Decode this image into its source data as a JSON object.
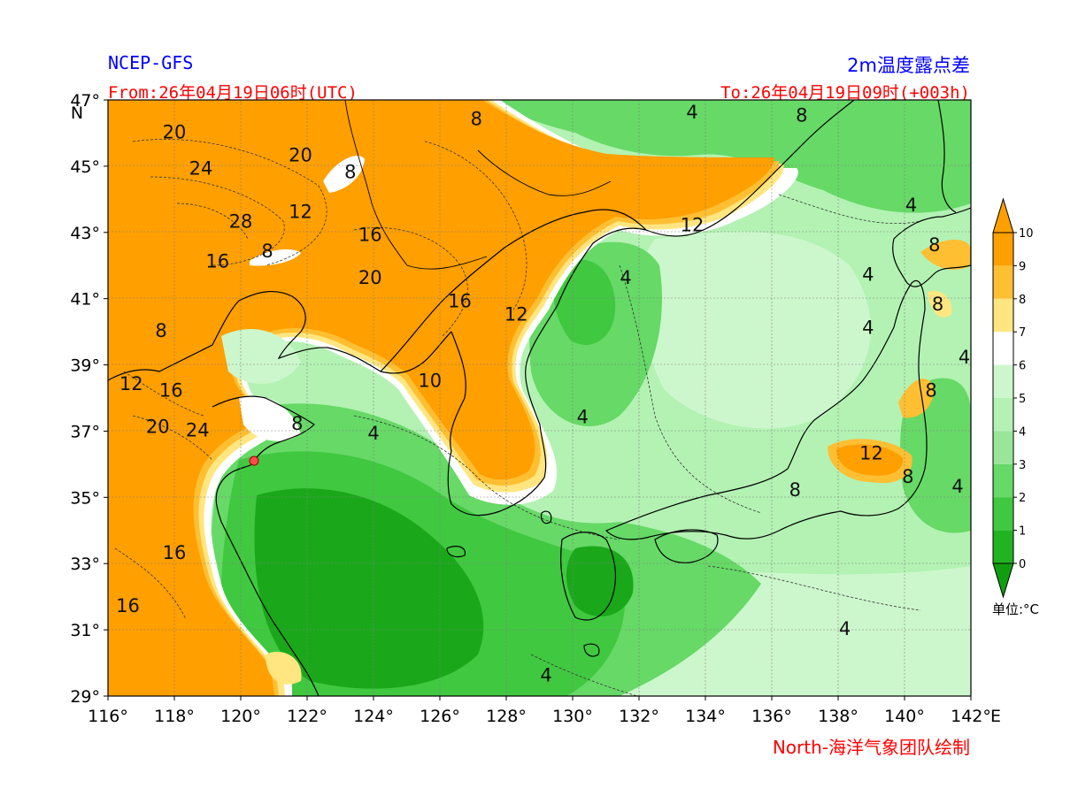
{
  "header": {
    "model": "NCEP-GFS",
    "product": "2m温度露点差",
    "from_time": "From:26年04月19日06时(UTC)",
    "to_time": "To:26年04月19日09时(+003h)"
  },
  "footer": {
    "credit": "North-海洋气象团队绘制"
  },
  "map": {
    "lon_range": [
      116,
      142
    ],
    "lat_range": [
      29,
      47
    ],
    "lon_ticks": [
      "116°",
      "118°",
      "120°",
      "122°",
      "124°",
      "126°",
      "128°",
      "130°",
      "132°",
      "134°",
      "136°",
      "138°",
      "140°",
      "142°"
    ],
    "lon_end_label": "E",
    "lat_ticks": [
      "29°",
      "31°",
      "33°",
      "35°",
      "37°",
      "39°",
      "41°",
      "43°",
      "45°",
      "47°"
    ],
    "lat_top_label": "N",
    "contour_labels": [
      {
        "text": "20",
        "lon": 118.0,
        "lat": 46.0
      },
      {
        "text": "24",
        "lon": 118.8,
        "lat": 44.9
      },
      {
        "text": "20",
        "lon": 121.8,
        "lat": 45.3
      },
      {
        "text": "8",
        "lon": 123.3,
        "lat": 44.8
      },
      {
        "text": "12",
        "lon": 121.8,
        "lat": 43.6
      },
      {
        "text": "28",
        "lon": 120.0,
        "lat": 43.3
      },
      {
        "text": "16",
        "lon": 123.9,
        "lat": 42.9
      },
      {
        "text": "8",
        "lon": 120.8,
        "lat": 42.4
      },
      {
        "text": "16",
        "lon": 119.3,
        "lat": 42.1
      },
      {
        "text": "20",
        "lon": 123.9,
        "lat": 41.6
      },
      {
        "text": "16",
        "lon": 126.6,
        "lat": 40.9
      },
      {
        "text": "12",
        "lon": 128.3,
        "lat": 40.5
      },
      {
        "text": "8",
        "lon": 117.6,
        "lat": 40.0
      },
      {
        "text": "12",
        "lon": 116.7,
        "lat": 38.4
      },
      {
        "text": "16",
        "lon": 117.9,
        "lat": 38.2
      },
      {
        "text": "10",
        "lon": 125.7,
        "lat": 38.5
      },
      {
        "text": "20",
        "lon": 117.5,
        "lat": 37.1
      },
      {
        "text": "24",
        "lon": 118.7,
        "lat": 37.0
      },
      {
        "text": "8",
        "lon": 121.7,
        "lat": 37.2
      },
      {
        "text": "4",
        "lon": 124.0,
        "lat": 36.9
      },
      {
        "text": "4",
        "lon": 130.3,
        "lat": 37.4
      },
      {
        "text": "8",
        "lon": 127.1,
        "lat": 46.4
      },
      {
        "text": "4",
        "lon": 133.6,
        "lat": 46.6
      },
      {
        "text": "8",
        "lon": 136.9,
        "lat": 46.5
      },
      {
        "text": "4",
        "lon": 140.2,
        "lat": 43.8
      },
      {
        "text": "12",
        "lon": 133.6,
        "lat": 43.2
      },
      {
        "text": "8",
        "lon": 140.9,
        "lat": 42.6
      },
      {
        "text": "4",
        "lon": 131.6,
        "lat": 41.6
      },
      {
        "text": "4",
        "lon": 138.9,
        "lat": 41.7
      },
      {
        "text": "8",
        "lon": 141.0,
        "lat": 40.8
      },
      {
        "text": "4",
        "lon": 138.9,
        "lat": 40.1
      },
      {
        "text": "4",
        "lon": 141.8,
        "lat": 39.2
      },
      {
        "text": "8",
        "lon": 140.8,
        "lat": 38.2
      },
      {
        "text": "12",
        "lon": 139.0,
        "lat": 36.3
      },
      {
        "text": "8",
        "lon": 140.1,
        "lat": 35.6
      },
      {
        "text": "8",
        "lon": 136.7,
        "lat": 35.2
      },
      {
        "text": "4",
        "lon": 141.6,
        "lat": 35.3
      },
      {
        "text": "16",
        "lon": 118.0,
        "lat": 33.3
      },
      {
        "text": "16",
        "lon": 116.6,
        "lat": 31.7
      },
      {
        "text": "4",
        "lon": 138.2,
        "lat": 31.0
      },
      {
        "text": "4",
        "lon": 129.2,
        "lat": 29.6
      }
    ]
  },
  "colorbar": {
    "levels": [
      "10",
      "9",
      "8",
      "7",
      "6",
      "5",
      "4",
      "3",
      "2",
      "1",
      "0"
    ],
    "colors": [
      "#ff9f00",
      "#ffbf33",
      "#ffe680",
      "#ffffff",
      "#ccf7cc",
      "#b3f2b3",
      "#99e699",
      "#66d966",
      "#40c840",
      "#22b322",
      "#10a010"
    ],
    "top_extend_color": "#ff9f00",
    "bottom_extend_color": "#109e10",
    "unit": "单位:°C"
  },
  "colors": {
    "dry_orange": "#ff9f00",
    "light_orange": "#ffbf33",
    "yellow": "#ffe680",
    "white_band": "#ffffff",
    "green_pale": "#ccf7cc",
    "green_light": "#99e699",
    "green_mid": "#66d966",
    "green_bright": "#40c840",
    "green_deep": "#1aa81a",
    "coast": "#000000",
    "marker": "#ff4d4d"
  },
  "chart_data": {
    "type": "heatmap",
    "title": "2m温度露点差",
    "xlabel": "",
    "ylabel": "",
    "xlim": [
      116,
      142
    ],
    "ylim": [
      29,
      47
    ],
    "unit": "°C",
    "levels": [
      0,
      1,
      2,
      3,
      4,
      5,
      6,
      7,
      8,
      9,
      10
    ],
    "source": "NCEP-GFS"
  }
}
